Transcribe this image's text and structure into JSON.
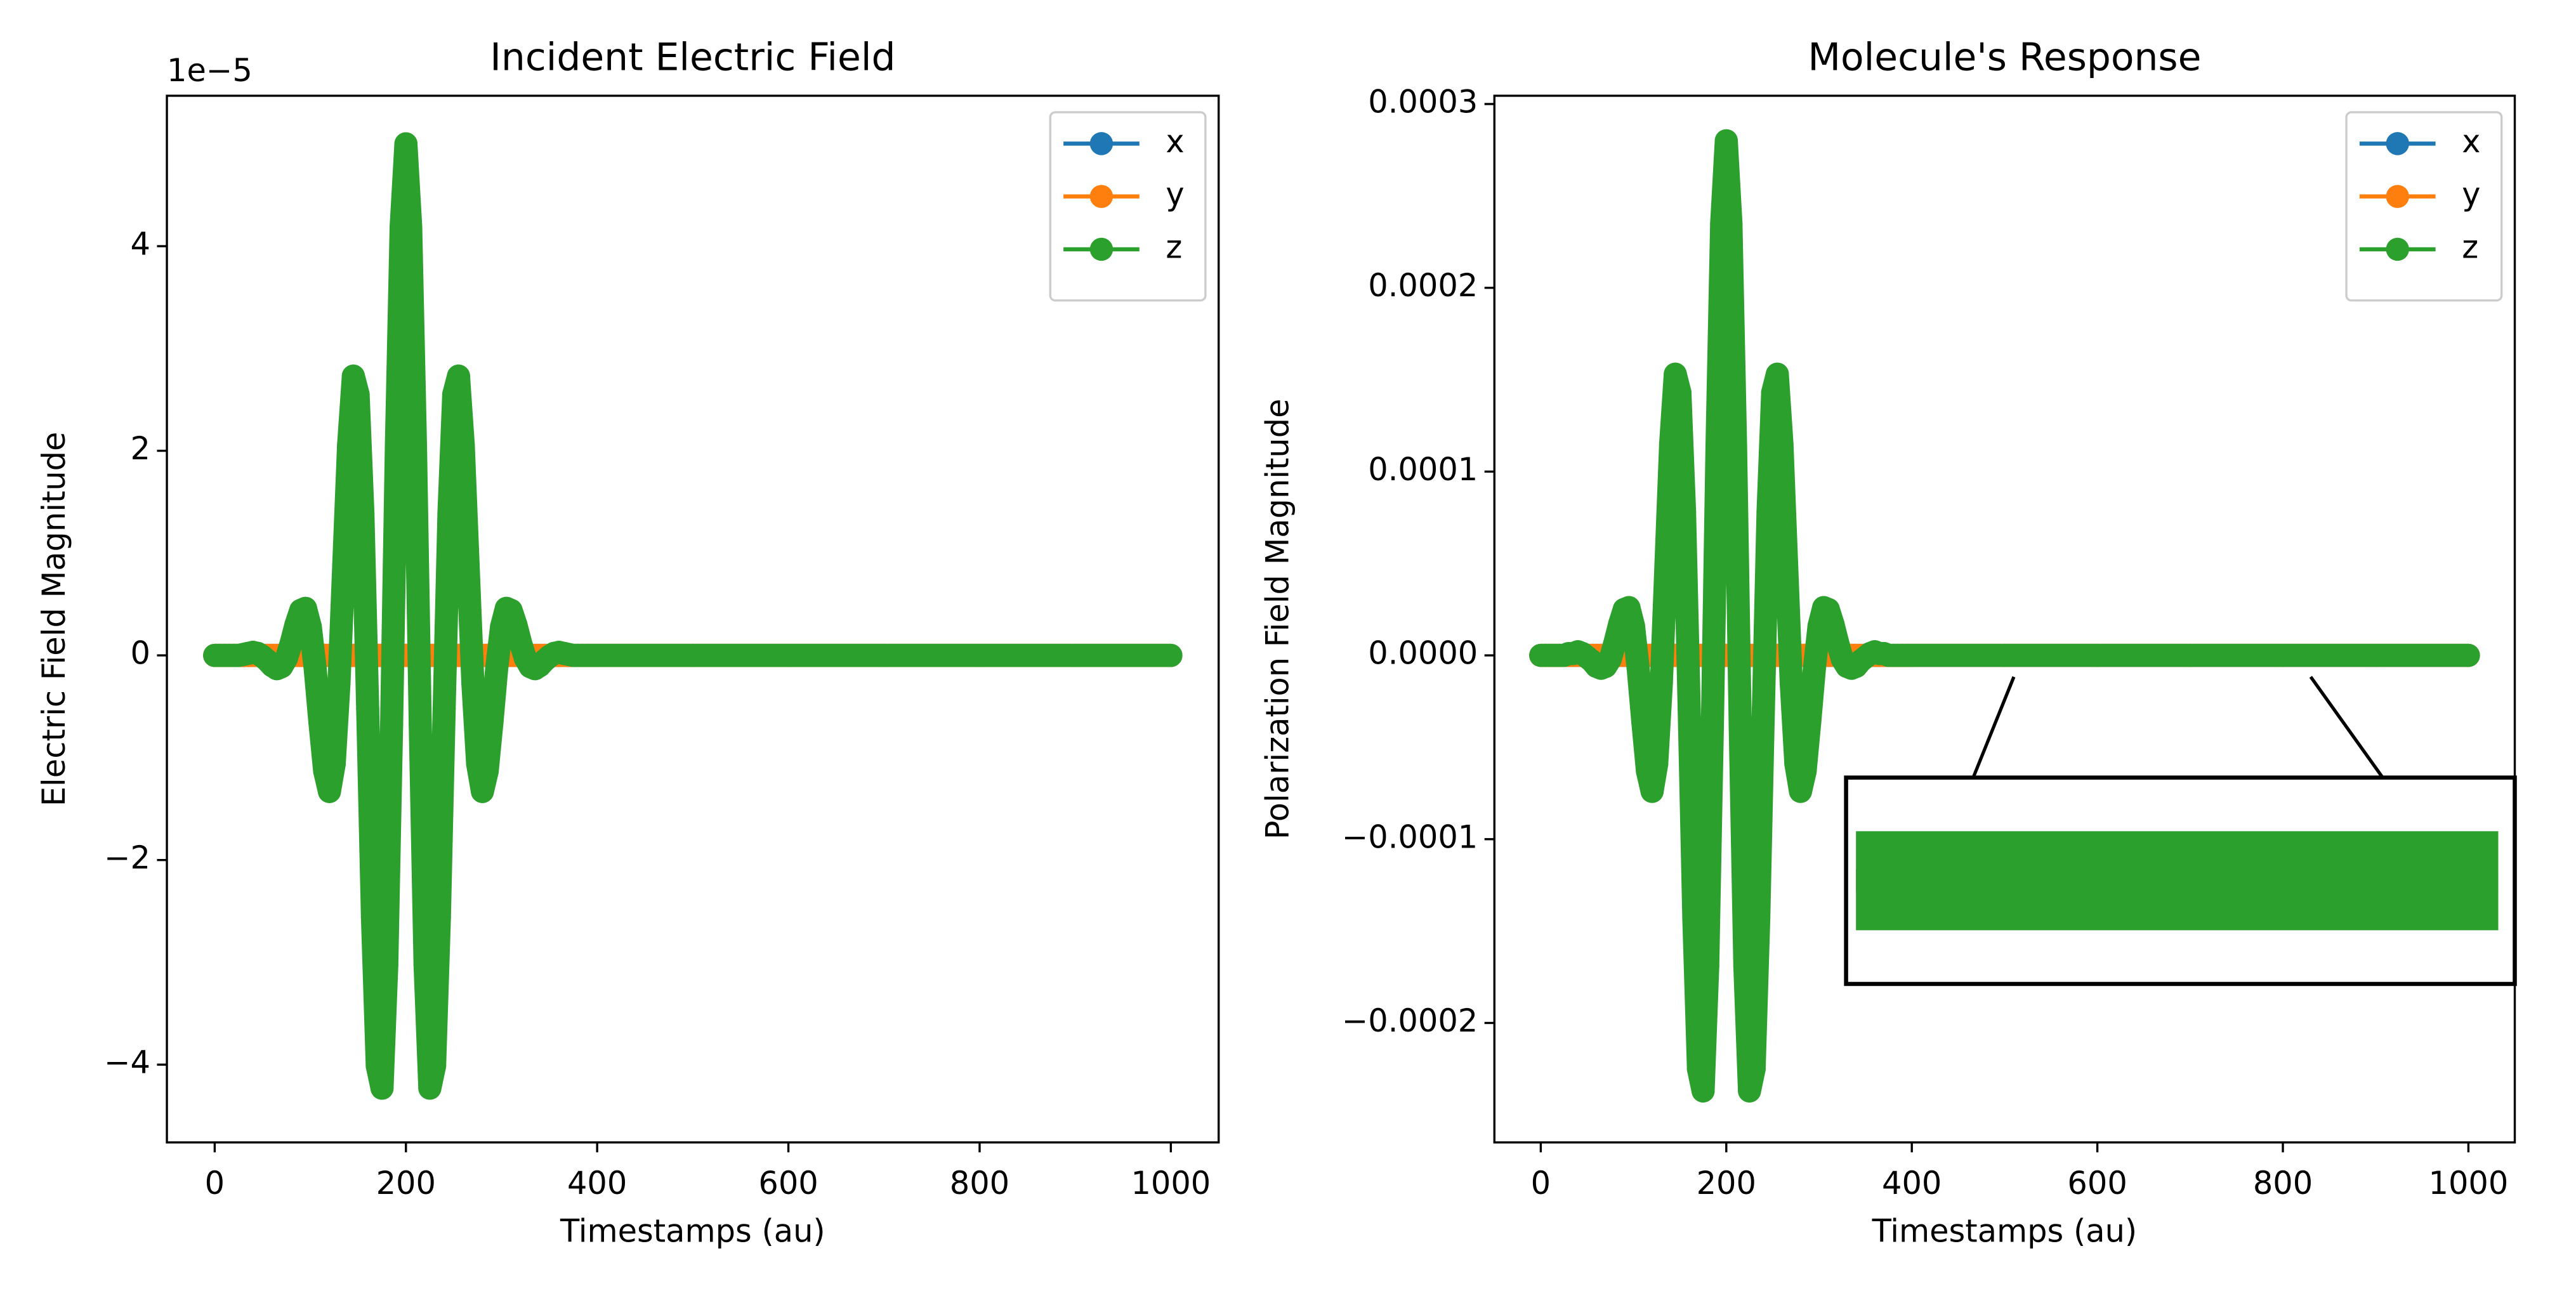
{
  "chart_data": [
    {
      "type": "line",
      "title": "Incident Electric Field",
      "xlabel": "Timestamps (au)",
      "ylabel": "Electric Field Magnitude",
      "y_offset_label": "1e−5",
      "xlim": [
        -50,
        1050
      ],
      "ylim": [
        -4.76,
        5.47
      ],
      "xticks": [
        0,
        200,
        400,
        600,
        800,
        1000
      ],
      "yticks": [
        {
          "value": -4,
          "label": "−4"
        },
        {
          "value": -2,
          "label": "−2"
        },
        0,
        2,
        4
      ],
      "legend": "upper right",
      "x": [
        0,
        5,
        10,
        15,
        20,
        25,
        30,
        35,
        40,
        45,
        50,
        55,
        60,
        65,
        70,
        75,
        80,
        85,
        90,
        95,
        100,
        105,
        110,
        115,
        120,
        125,
        130,
        135,
        140,
        145,
        150,
        155,
        160,
        165,
        170,
        175,
        180,
        185,
        190,
        195,
        200,
        205,
        210,
        215,
        220,
        225,
        230,
        235,
        240,
        245,
        250,
        255,
        260,
        265,
        270,
        275,
        280,
        285,
        290,
        295,
        300,
        305,
        310,
        315,
        320,
        325,
        330,
        335,
        340,
        345,
        350,
        355,
        360,
        365,
        370,
        375,
        380,
        385,
        390,
        395,
        400,
        500,
        600,
        700,
        800,
        900,
        1000
      ],
      "series": [
        {
          "name": "x",
          "color": "#1f77b4",
          "values": [
            0,
            0,
            0,
            0,
            0,
            0,
            0,
            0,
            0,
            0,
            0,
            0,
            0,
            0,
            0,
            0,
            0,
            0,
            0,
            0,
            0,
            0,
            0,
            0,
            0,
            0,
            0,
            0,
            0,
            0,
            0,
            0,
            0,
            0,
            0,
            0,
            0,
            0,
            0,
            0,
            0,
            0,
            0,
            0,
            0,
            0,
            0,
            0,
            0,
            0,
            0,
            0,
            0,
            0,
            0,
            0,
            0,
            0,
            0,
            0,
            0,
            0,
            0,
            0,
            0,
            0,
            0,
            0,
            0,
            0,
            0,
            0,
            0,
            0,
            0,
            0,
            0,
            0,
            0,
            0,
            0,
            0,
            0,
            0,
            0,
            0,
            0
          ]
        },
        {
          "name": "y",
          "color": "#ff7f0e",
          "values": [
            0,
            0,
            0,
            0,
            0,
            0,
            0,
            0,
            0,
            0,
            0,
            0,
            0,
            0,
            0,
            0,
            0,
            0,
            0,
            0,
            0,
            0,
            0,
            0,
            0,
            0,
            0,
            0,
            0,
            0,
            0,
            0,
            0,
            0,
            0,
            0,
            0,
            0,
            0,
            0,
            0,
            0,
            0,
            0,
            0,
            0,
            0,
            0,
            0,
            0,
            0,
            0,
            0,
            0,
            0,
            0,
            0,
            0,
            0,
            0,
            0,
            0,
            0,
            0,
            0,
            0,
            0,
            0,
            0,
            0,
            0,
            0,
            0,
            0,
            0,
            0,
            0,
            0,
            0,
            0,
            0,
            0,
            0,
            0,
            0,
            0,
            0
          ]
        },
        {
          "name": "z",
          "color": "#2ca02c",
          "values": [
            0,
            0,
            0,
            0,
            0,
            0,
            0.01,
            0.02,
            0.03,
            0.02,
            -0.01,
            -0.05,
            -0.1,
            -0.13,
            -0.11,
            -0.03,
            0.12,
            0.3,
            0.44,
            0.46,
            0.28,
            -0.12,
            -0.65,
            -1.13,
            -1.33,
            -1.06,
            -0.27,
            0.89,
            2.05,
            2.73,
            2.55,
            1.39,
            -0.52,
            -2.56,
            -4.01,
            -4.23,
            -3.02,
            -0.68,
            2.04,
            4.19,
            5.0,
            4.19,
            2.04,
            -0.68,
            -3.02,
            -4.23,
            -4.01,
            -2.56,
            -0.52,
            1.39,
            2.55,
            2.73,
            2.05,
            0.89,
            -0.27,
            -1.06,
            -1.33,
            -1.13,
            -0.65,
            -0.12,
            0.28,
            0.46,
            0.44,
            0.3,
            0.12,
            -0.03,
            -0.11,
            -0.13,
            -0.1,
            -0.05,
            -0.01,
            0.02,
            0.03,
            0.02,
            0.01,
            0,
            0,
            0,
            0,
            0,
            0,
            0,
            0,
            0,
            0,
            0,
            0
          ]
        }
      ]
    },
    {
      "type": "line",
      "title": "Molecule's Response",
      "xlabel": "Timestamps (au)",
      "ylabel": "Polarization Field Magnitude",
      "xlim": [
        -50,
        1050
      ],
      "ylim": [
        -0.000265,
        0.0003045
      ],
      "xticks": [
        0,
        200,
        400,
        600,
        800,
        1000
      ],
      "yticks": [
        {
          "value": -0.0002,
          "label": "−0.0002"
        },
        {
          "value": -0.0001,
          "label": "−0.0001"
        },
        {
          "value": 0,
          "label": "0.0000"
        },
        0.0001,
        0.0002,
        0.0003
      ],
      "legend": "upper right",
      "inset_xlim": [
        510,
        830
      ],
      "inset_ylim": [
        -5e-06,
        5e-06
      ],
      "x": [
        0,
        5,
        10,
        15,
        20,
        25,
        30,
        35,
        40,
        45,
        50,
        55,
        60,
        65,
        70,
        75,
        80,
        85,
        90,
        95,
        100,
        105,
        110,
        115,
        120,
        125,
        130,
        135,
        140,
        145,
        150,
        155,
        160,
        165,
        170,
        175,
        180,
        185,
        190,
        195,
        200,
        205,
        210,
        215,
        220,
        225,
        230,
        235,
        240,
        245,
        250,
        255,
        260,
        265,
        270,
        275,
        280,
        285,
        290,
        295,
        300,
        305,
        310,
        315,
        320,
        325,
        330,
        335,
        340,
        345,
        350,
        355,
        360,
        365,
        370,
        375,
        380,
        385,
        390,
        395,
        400,
        500,
        600,
        700,
        800,
        900,
        1000
      ],
      "series": [
        {
          "name": "x",
          "color": "#1f77b4",
          "values": [
            0,
            0,
            0,
            0,
            0,
            0,
            0,
            0,
            0,
            0,
            0,
            0,
            0,
            0,
            0,
            0,
            0,
            0,
            0,
            0,
            0,
            0,
            0,
            0,
            0,
            0,
            0,
            0,
            0,
            0,
            0,
            0,
            0,
            0,
            0,
            0,
            0,
            0,
            0,
            0,
            0,
            0,
            0,
            0,
            0,
            0,
            0,
            0,
            0,
            0,
            0,
            0,
            0,
            0,
            0,
            0,
            0,
            0,
            0,
            0,
            0,
            0,
            0,
            0,
            0,
            0,
            0,
            0,
            0,
            0,
            0,
            0,
            0,
            0,
            0,
            0,
            0,
            0,
            0,
            0,
            0,
            0,
            0,
            0,
            0,
            0,
            0
          ]
        },
        {
          "name": "y",
          "color": "#ff7f0e",
          "values": [
            0,
            0,
            0,
            0,
            0,
            0,
            0,
            0,
            0,
            0,
            0,
            0,
            0,
            0,
            0,
            0,
            0,
            0,
            0,
            0,
            0,
            0,
            0,
            0,
            0,
            0,
            0,
            0,
            0,
            0,
            0,
            0,
            0,
            0,
            0,
            0,
            0,
            0,
            0,
            0,
            0,
            0,
            0,
            0,
            0,
            0,
            0,
            0,
            0,
            0,
            0,
            0,
            0,
            0,
            0,
            0,
            0,
            0,
            0,
            0,
            0,
            0,
            0,
            0,
            0,
            0,
            0,
            0,
            0,
            0,
            0,
            0,
            0,
            0,
            0,
            0,
            0,
            0,
            0,
            0,
            0,
            0,
            0,
            0,
            0,
            0,
            0
          ]
        },
        {
          "name": "z",
          "color": "#2ca02c",
          "values": [
            0,
            0,
            0,
            0,
            0,
            0,
            1e-06,
            1e-06,
            2e-06,
            1e-06,
            -1e-06,
            -3e-06,
            -6e-06,
            -7e-06,
            -6e-06,
            -2e-06,
            7e-06,
            1.7e-05,
            2.5e-05,
            2.6e-05,
            1.6e-05,
            -7e-06,
            -3.6e-05,
            -6.3e-05,
            -7.4e-05,
            -5.9e-05,
            -1.5e-05,
            5e-05,
            0.000115,
            0.000153,
            0.000143,
            7.8e-05,
            -2.9e-05,
            -0.000143,
            -0.000225,
            -0.000237,
            -0.000169,
            -3.8e-05,
            0.000114,
            0.000235,
            0.00028,
            0.000235,
            0.000114,
            -3.8e-05,
            -0.000169,
            -0.000237,
            -0.000225,
            -0.000143,
            -2.9e-05,
            7.8e-05,
            0.000143,
            0.000153,
            0.000115,
            5e-05,
            -1.5e-05,
            -5.9e-05,
            -7.4e-05,
            -6.3e-05,
            -3.6e-05,
            -7e-06,
            1.6e-05,
            2.6e-05,
            2.5e-05,
            1.7e-05,
            7e-06,
            -2e-06,
            -6e-06,
            -7e-06,
            -6e-06,
            -3e-06,
            -1e-06,
            1e-06,
            2e-06,
            1e-06,
            1e-06,
            0,
            0,
            0,
            0,
            0,
            0,
            0,
            0,
            0,
            0,
            0,
            0
          ]
        }
      ]
    }
  ]
}
